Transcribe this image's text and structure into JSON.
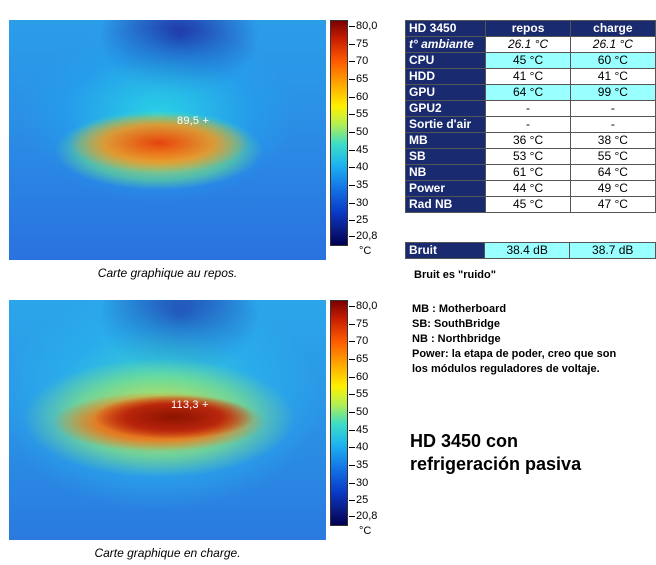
{
  "images": [
    {
      "readout": "89,5 +",
      "caption": "Carte graphique au repos."
    },
    {
      "readout": "113,3 +",
      "caption": "Carte graphique en charge."
    }
  ],
  "scale": {
    "ticks": [
      "80,0",
      "75",
      "70",
      "65",
      "60",
      "55",
      "50",
      "45",
      "40",
      "35",
      "30",
      "25",
      "20,8"
    ],
    "unit": "°C"
  },
  "table": {
    "title": "HD 3450",
    "col_idle": "repos",
    "col_load": "charge",
    "rows": [
      {
        "label": "t° ambiante",
        "idle": "26.1 °C",
        "load": "26.1 °C"
      },
      {
        "label": "CPU",
        "idle": "45 °C",
        "load": "60 °C"
      },
      {
        "label": "HDD",
        "idle": "41 °C",
        "load": "41 °C"
      },
      {
        "label": "GPU",
        "idle": "64 °C",
        "load": "99 °C"
      },
      {
        "label": "GPU2",
        "idle": "-",
        "load": "-"
      },
      {
        "label": "Sortie d'air",
        "idle": "-",
        "load": "-"
      },
      {
        "label": "MB",
        "idle": "36 °C",
        "load": "38 °C"
      },
      {
        "label": "SB",
        "idle": "53 °C",
        "load": "55 °C"
      },
      {
        "label": "NB",
        "idle": "61 °C",
        "load": "64 °C"
      },
      {
        "label": "Power",
        "idle": "44 °C",
        "load": "49 °C"
      },
      {
        "label": "Rad NB",
        "idle": "45 °C",
        "load": "47 °C"
      }
    ],
    "noise": {
      "label": "Bruit",
      "idle": "38.4 dB",
      "load": "38.7 dB"
    }
  },
  "note": "Bruit es \"ruido\"",
  "legend": [
    "MB  : Motherboard",
    "SB: SouthBridge",
    "NB : Northbridge",
    "Power:  la etapa de poder, creo que son",
    "los módulos reguladores de voltaje."
  ],
  "heading": [
    "HD 3450 con",
    "refrigeración pasiva"
  ],
  "colors": {
    "header": "#1a2a6e",
    "highlight": "#99ffff"
  }
}
